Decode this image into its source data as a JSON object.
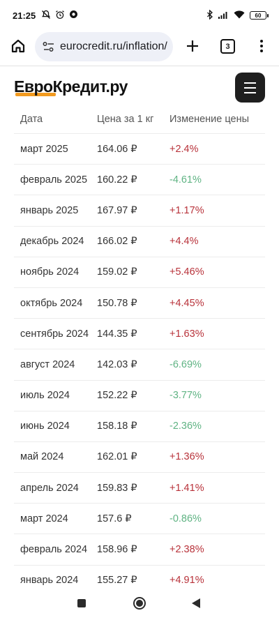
{
  "status_bar": {
    "time": "21:25",
    "battery": "60"
  },
  "browser": {
    "url": "eurocredit.ru/inflation/",
    "tab_count": "3"
  },
  "site": {
    "logo": "ЕвроКредит.ру",
    "accent_color": "#f29a1f"
  },
  "table": {
    "headers": {
      "date": "Дата",
      "price": "Цена за 1 кг",
      "change": "Изменение цены"
    },
    "rows": [
      {
        "date": "март 2025",
        "price": "164.06 ₽",
        "change": "+2.4%",
        "trend": "up"
      },
      {
        "date": "февраль 2025",
        "price": "160.22 ₽",
        "change": "-4.61%",
        "trend": "down"
      },
      {
        "date": "январь 2025",
        "price": "167.97 ₽",
        "change": "+1.17%",
        "trend": "up"
      },
      {
        "date": "декабрь 2024",
        "price": "166.02 ₽",
        "change": "+4.4%",
        "trend": "up"
      },
      {
        "date": "ноябрь 2024",
        "price": "159.02 ₽",
        "change": "+5.46%",
        "trend": "up"
      },
      {
        "date": "октябрь 2024",
        "price": "150.78 ₽",
        "change": "+4.45%",
        "trend": "up"
      },
      {
        "date": "сентябрь 2024",
        "price": "144.35 ₽",
        "change": "+1.63%",
        "trend": "up"
      },
      {
        "date": "август 2024",
        "price": "142.03 ₽",
        "change": "-6.69%",
        "trend": "down"
      },
      {
        "date": "июль 2024",
        "price": "152.22 ₽",
        "change": "-3.77%",
        "trend": "down"
      },
      {
        "date": "июнь 2024",
        "price": "158.18 ₽",
        "change": "-2.36%",
        "trend": "down"
      },
      {
        "date": "май 2024",
        "price": "162.01 ₽",
        "change": "+1.36%",
        "trend": "up"
      },
      {
        "date": "апрель 2024",
        "price": "159.83 ₽",
        "change": "+1.41%",
        "trend": "up"
      },
      {
        "date": "март 2024",
        "price": "157.6 ₽",
        "change": "-0.86%",
        "trend": "down"
      },
      {
        "date": "февраль 2024",
        "price": "158.96 ₽",
        "change": "+2.38%",
        "trend": "up"
      },
      {
        "date": "январь 2024",
        "price": "155.27 ₽",
        "change": "+4.91%",
        "trend": "up"
      }
    ],
    "colors": {
      "up": "#b8323a",
      "down": "#5fb383"
    }
  }
}
